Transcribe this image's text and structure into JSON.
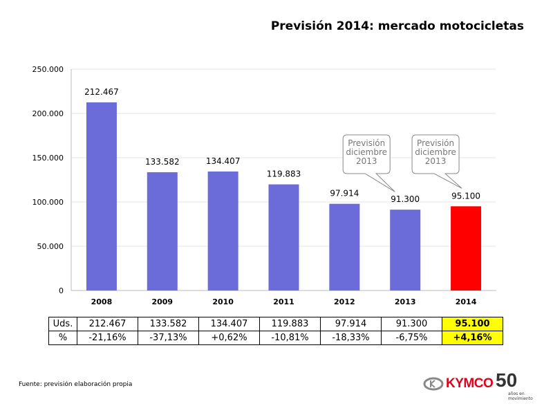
{
  "title": "Previsión 2014: mercado motocicletas",
  "chart_data": {
    "type": "bar",
    "title": "Previsión 2014: mercado motocicletas",
    "categories": [
      "2008",
      "2009",
      "2010",
      "2011",
      "2012",
      "2013",
      "2014"
    ],
    "values": [
      212467,
      133582,
      134407,
      119883,
      97914,
      91300,
      95100
    ],
    "value_labels": [
      "212.467",
      "133.582",
      "134.407",
      "119.883",
      "97.914",
      "91.300",
      "95.100"
    ],
    "bar_colors": [
      "#6b6bd9",
      "#6b6bd9",
      "#6b6bd9",
      "#6b6bd9",
      "#6b6bd9",
      "#6b6bd9",
      "#ff0000"
    ],
    "ylim": [
      0,
      250000
    ],
    "yticks": [
      0,
      50000,
      100000,
      150000,
      200000,
      250000
    ],
    "ytick_labels": [
      "0",
      "50.000",
      "100.000",
      "150.000",
      "200.000",
      "250.000"
    ],
    "grid": true,
    "annotations": [
      {
        "category": "2013",
        "text": [
          "Previsión",
          "diciembre",
          "2013"
        ]
      },
      {
        "category": "2014",
        "text": [
          "Previsión",
          "diciembre",
          "2013"
        ]
      }
    ]
  },
  "table": {
    "rows": [
      {
        "label": "Uds.",
        "cells": [
          "212.467",
          "133.582",
          "134.407",
          "119.883",
          "97.914",
          "91.300",
          "95.100"
        ]
      },
      {
        "label": "%",
        "cells": [
          "-21,16%",
          "-37,13%",
          "+0,62%",
          "-10,81%",
          "-18,33%",
          "-6,75%",
          "+4,16%"
        ]
      }
    ]
  },
  "source": "Fuente: previsión elaboración propia",
  "logo": {
    "brand": "KYMCO",
    "badge": "50",
    "tagline": "años en movimiento"
  }
}
